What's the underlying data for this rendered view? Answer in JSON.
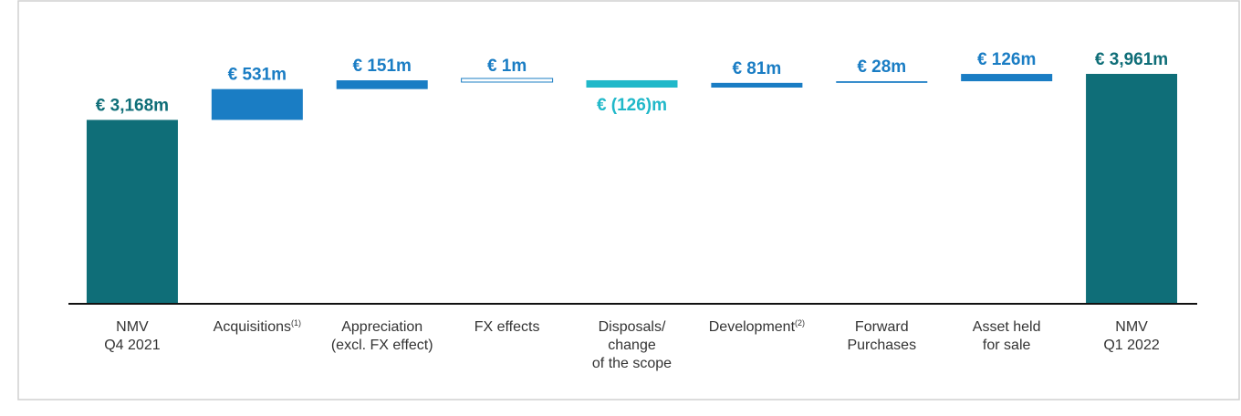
{
  "chart_data": {
    "type": "waterfall",
    "categories": [
      [
        "NMV",
        "Q4 2021"
      ],
      [
        "Acquisitions"
      ],
      [
        "Appreciation",
        "(excl. FX effect)"
      ],
      [
        "FX effects"
      ],
      [
        "Disposals/",
        "change",
        "of the scope"
      ],
      [
        "Development"
      ],
      [
        "Forward",
        "Purchases"
      ],
      [
        "Asset held",
        "for sale"
      ],
      [
        "NMV",
        "Q1 2022"
      ]
    ],
    "category_notes": [
      null,
      "(1)",
      null,
      null,
      null,
      "(2)",
      null,
      null,
      null
    ],
    "values": [
      3168,
      531,
      151,
      1,
      -126,
      81,
      28,
      126,
      3961
    ],
    "value_labels": [
      "€ 3,168m",
      "€ 531m",
      "€ 151m",
      "€ 1m",
      "€ (126)m",
      "€ 81m",
      "€ 28m",
      "€ 126m",
      "€ 3,961m"
    ],
    "is_total": [
      true,
      false,
      false,
      false,
      false,
      false,
      false,
      false,
      true
    ],
    "colors": {
      "total": "#0f6e78",
      "increase": "#1a7dc4",
      "decrease": "#20b8c9"
    },
    "ylim": [
      0,
      4000
    ]
  }
}
